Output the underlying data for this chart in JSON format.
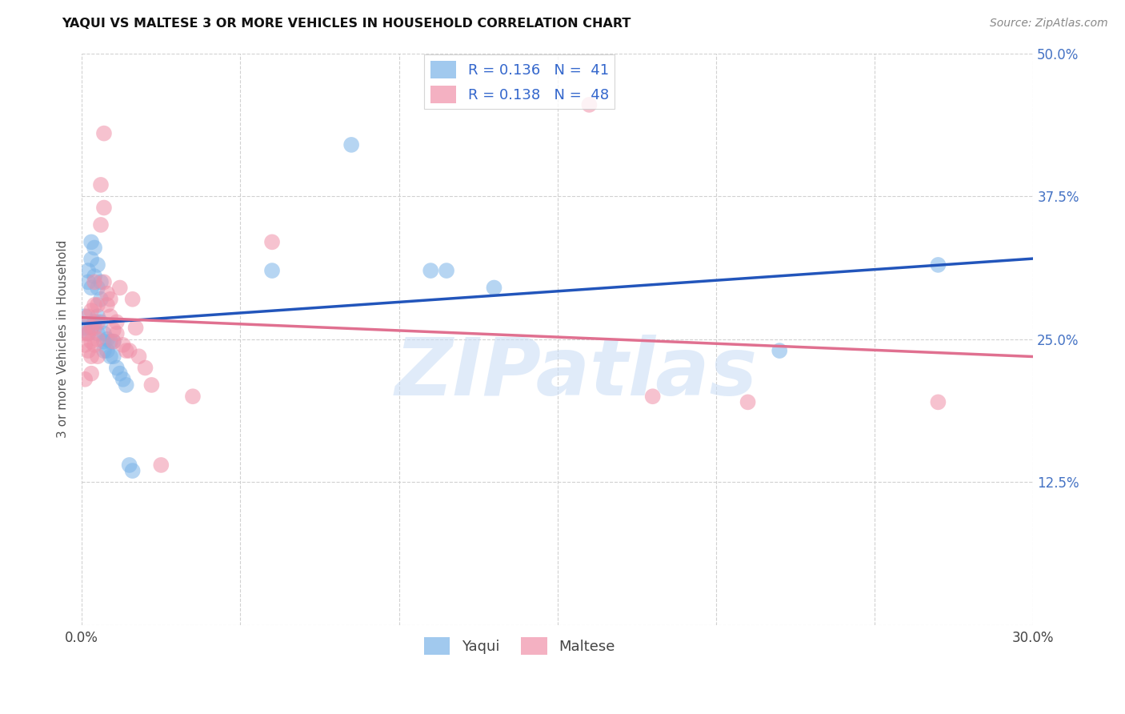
{
  "title": "YAQUI VS MALTESE 3 OR MORE VEHICLES IN HOUSEHOLD CORRELATION CHART",
  "source_text": "Source: ZipAtlas.com",
  "ylabel": "3 or more Vehicles in Household",
  "xlim": [
    0.0,
    0.3
  ],
  "ylim": [
    0.0,
    0.5
  ],
  "xticks": [
    0.0,
    0.05,
    0.1,
    0.15,
    0.2,
    0.25,
    0.3
  ],
  "yticks": [
    0.0,
    0.125,
    0.25,
    0.375,
    0.5
  ],
  "yaqui_color": "#7ab3e8",
  "maltese_color": "#f090a8",
  "watermark": "ZIPatlas",
  "background_color": "#ffffff",
  "yaqui_line_color": "#2255bb",
  "maltese_line_color": "#e07090",
  "yaqui_x": [
    0.001,
    0.001,
    0.002,
    0.002,
    0.002,
    0.003,
    0.003,
    0.003,
    0.003,
    0.004,
    0.004,
    0.004,
    0.005,
    0.005,
    0.005,
    0.005,
    0.006,
    0.006,
    0.006,
    0.007,
    0.007,
    0.007,
    0.008,
    0.008,
    0.009,
    0.009,
    0.01,
    0.01,
    0.011,
    0.012,
    0.013,
    0.014,
    0.015,
    0.016,
    0.06,
    0.085,
    0.11,
    0.115,
    0.13,
    0.22,
    0.27
  ],
  "yaqui_y": [
    0.27,
    0.26,
    0.31,
    0.3,
    0.255,
    0.335,
    0.32,
    0.295,
    0.26,
    0.33,
    0.305,
    0.265,
    0.315,
    0.295,
    0.27,
    0.255,
    0.3,
    0.285,
    0.265,
    0.255,
    0.248,
    0.24,
    0.25,
    0.24,
    0.248,
    0.235,
    0.248,
    0.235,
    0.225,
    0.22,
    0.215,
    0.21,
    0.14,
    0.135,
    0.31,
    0.42,
    0.31,
    0.31,
    0.295,
    0.24,
    0.315
  ],
  "maltese_x": [
    0.001,
    0.001,
    0.001,
    0.002,
    0.002,
    0.002,
    0.003,
    0.003,
    0.003,
    0.003,
    0.003,
    0.004,
    0.004,
    0.004,
    0.004,
    0.005,
    0.005,
    0.005,
    0.005,
    0.006,
    0.006,
    0.007,
    0.007,
    0.007,
    0.008,
    0.008,
    0.009,
    0.009,
    0.01,
    0.01,
    0.011,
    0.011,
    0.012,
    0.013,
    0.014,
    0.015,
    0.016,
    0.017,
    0.018,
    0.02,
    0.022,
    0.025,
    0.035,
    0.06,
    0.16,
    0.18,
    0.21,
    0.27
  ],
  "maltese_y": [
    0.255,
    0.245,
    0.215,
    0.27,
    0.255,
    0.24,
    0.275,
    0.26,
    0.248,
    0.235,
    0.22,
    0.3,
    0.28,
    0.26,
    0.245,
    0.28,
    0.265,
    0.25,
    0.235,
    0.35,
    0.385,
    0.43,
    0.365,
    0.3,
    0.29,
    0.28,
    0.285,
    0.27,
    0.258,
    0.248,
    0.265,
    0.255,
    0.295,
    0.245,
    0.24,
    0.24,
    0.285,
    0.26,
    0.235,
    0.225,
    0.21,
    0.14,
    0.2,
    0.335,
    0.455,
    0.2,
    0.195,
    0.195
  ]
}
